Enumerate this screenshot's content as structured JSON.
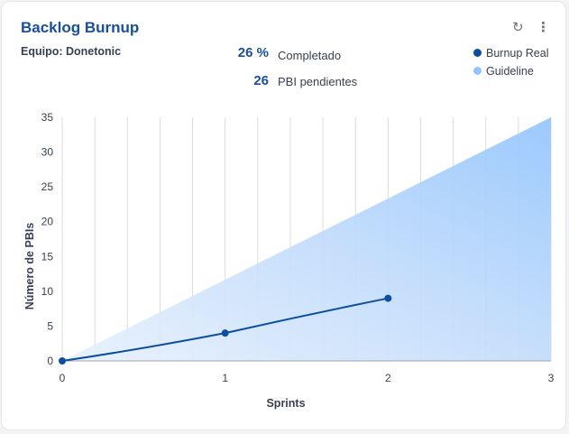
{
  "widget": {
    "title": "Backlog Burnup",
    "team_label": "Equipo: Donetonic",
    "stats": [
      {
        "value": "26 %",
        "label": "Completado"
      },
      {
        "value": "26",
        "label": "PBI pendientes"
      }
    ],
    "icons": {
      "refresh": "refresh-icon",
      "menu": "more-vertical-icon"
    }
  },
  "legend": [
    {
      "label": "Burnup Real",
      "color": "#0d4f9e"
    },
    {
      "label": "Guideline",
      "color": "#93c5fd"
    }
  ],
  "chart_data": {
    "type": "line",
    "xlabel": "Sprints",
    "ylabel": "Número de PBIs",
    "xlim": [
      0,
      3
    ],
    "ylim": [
      0,
      35
    ],
    "x_ticks": [
      0,
      1,
      2,
      3
    ],
    "y_ticks": [
      0,
      5,
      10,
      15,
      20,
      25,
      30,
      35
    ],
    "grid": "vertical",
    "legend_position": "top-right",
    "series": [
      {
        "name": "Burnup Real",
        "type": "line",
        "x": [
          0,
          1,
          2
        ],
        "y": [
          0,
          4,
          9
        ],
        "color": "#0d4f9e"
      },
      {
        "name": "Guideline",
        "type": "area",
        "x": [
          0,
          3
        ],
        "y": [
          0,
          35
        ],
        "color": "#93c5fd"
      }
    ]
  }
}
